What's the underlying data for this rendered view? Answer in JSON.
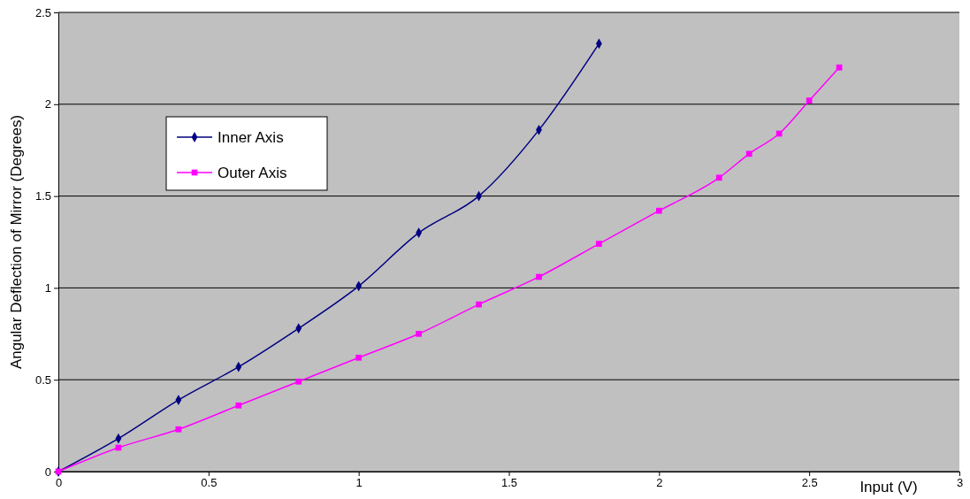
{
  "chart_data": {
    "type": "line",
    "xlabel": "Input (V)",
    "ylabel": "Angular Deflection of Mirror (Degrees)",
    "xlim": [
      0,
      3
    ],
    "xticks": [
      0,
      0.5,
      1,
      1.5,
      2,
      2.5,
      3
    ],
    "ylim": [
      0,
      2.5
    ],
    "yticks": [
      0,
      0.5,
      1,
      1.5,
      2,
      2.5
    ],
    "grid": "y",
    "legend": "top left",
    "series": [
      {
        "name": "Inner Axis",
        "color": "#000080",
        "marker": "diamond",
        "x": [
          0,
          0.2,
          0.4,
          0.6,
          0.8,
          1.0,
          1.2,
          1.4,
          1.6,
          1.8
        ],
        "values": [
          0,
          0.18,
          0.39,
          0.57,
          0.78,
          1.01,
          1.3,
          1.5,
          1.86,
          2.33
        ]
      },
      {
        "name": "Outer Axis",
        "color": "#ff00ff",
        "marker": "square",
        "x": [
          0,
          0.2,
          0.4,
          0.6,
          0.8,
          1.0,
          1.2,
          1.4,
          1.6,
          1.8,
          2.0,
          2.2,
          2.3,
          2.4,
          2.5,
          2.6
        ],
        "values": [
          0,
          0.13,
          0.23,
          0.36,
          0.49,
          0.62,
          0.75,
          0.91,
          1.06,
          1.24,
          1.42,
          1.6,
          1.73,
          1.84,
          2.02,
          2.2
        ]
      }
    ]
  }
}
